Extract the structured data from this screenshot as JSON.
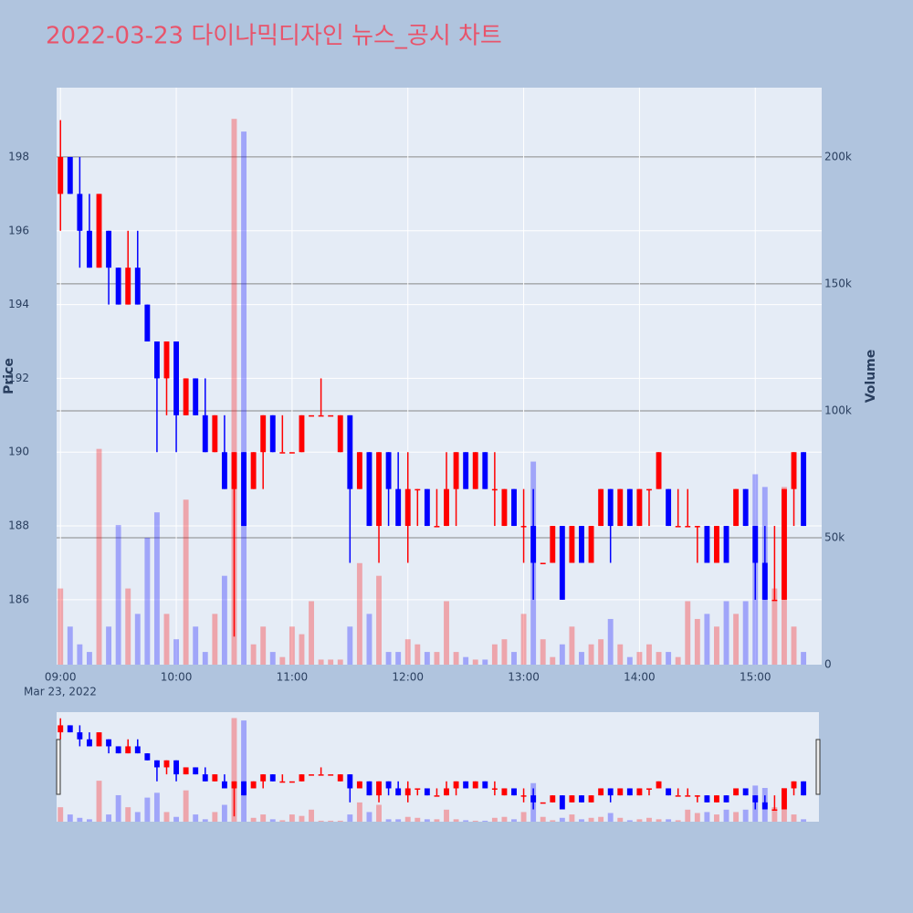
{
  "chart_data": {
    "type": "candlestick",
    "title": "2022-03-23 다이나믹디자인 뉴스_공시 차트",
    "y_label": "Price",
    "y2_label": "Volume",
    "x_sublabel": "Mar 23, 2022",
    "increasing_color": "#ff0000",
    "decreasing_color": "#0000ff",
    "xlim": [
      "08:58",
      "15:33"
    ],
    "xticks": [
      "09:00",
      "10:00",
      "11:00",
      "12:00",
      "13:00",
      "14:00",
      "15:00"
    ],
    "ylim": [
      184.24,
      199.88
    ],
    "yticks": [
      186,
      188,
      190,
      192,
      194,
      196,
      198
    ],
    "y2lim": [
      0,
      227300
    ],
    "y2ticks": [
      0,
      {
        "value": 50000,
        "label": "50k"
      },
      {
        "value": 100000,
        "label": "100k"
      },
      {
        "value": 150000,
        "label": "150k"
      },
      {
        "value": 200000,
        "label": "200k"
      }
    ],
    "x": [
      "09:00",
      "09:05",
      "09:10",
      "09:15",
      "09:20",
      "09:25",
      "09:30",
      "09:35",
      "09:40",
      "09:45",
      "09:50",
      "09:55",
      "10:00",
      "10:05",
      "10:10",
      "10:15",
      "10:20",
      "10:25",
      "10:30",
      "10:35",
      "10:40",
      "10:45",
      "10:50",
      "10:55",
      "11:00",
      "11:05",
      "11:10",
      "11:15",
      "11:20",
      "11:25",
      "11:30",
      "11:35",
      "11:40",
      "11:45",
      "11:50",
      "11:55",
      "12:00",
      "12:05",
      "12:10",
      "12:15",
      "12:20",
      "12:25",
      "12:30",
      "12:35",
      "12:40",
      "12:45",
      "12:50",
      "12:55",
      "13:00",
      "13:05",
      "13:10",
      "13:15",
      "13:20",
      "13:25",
      "13:30",
      "13:35",
      "13:40",
      "13:45",
      "13:50",
      "13:55",
      "14:00",
      "14:05",
      "14:10",
      "14:15",
      "14:20",
      "14:25",
      "14:30",
      "14:35",
      "14:40",
      "14:45",
      "14:50",
      "14:55",
      "15:00",
      "15:05",
      "15:10",
      "15:15",
      "15:20",
      "15:25"
    ],
    "open": [
      197,
      198,
      197,
      196,
      195,
      196,
      195,
      194,
      195,
      194,
      193,
      192,
      193,
      191,
      192,
      191,
      190,
      190,
      189,
      190,
      189,
      190,
      191,
      190,
      190,
      190,
      191,
      191,
      191,
      190,
      191,
      189,
      190,
      188,
      190,
      189,
      188,
      189,
      189,
      188,
      188,
      189,
      190,
      189,
      190,
      189,
      188,
      189,
      188,
      188,
      187,
      187,
      188,
      187,
      188,
      187,
      188,
      189,
      188,
      189,
      188,
      189,
      189,
      189,
      188,
      188,
      188,
      188,
      187,
      188,
      188,
      189,
      188,
      187,
      186,
      186,
      189,
      190
    ],
    "high": [
      199,
      198,
      198,
      197,
      197,
      196,
      195,
      196,
      196,
      194,
      193,
      193,
      193,
      192,
      192,
      192,
      191,
      191,
      190,
      190,
      190,
      191,
      191,
      191,
      190,
      191,
      191,
      192,
      191,
      191,
      191,
      190,
      190,
      190,
      190,
      190,
      190,
      189,
      189,
      189,
      190,
      190,
      190,
      190,
      190,
      190,
      189,
      189,
      189,
      189,
      187,
      188,
      188,
      188,
      188,
      188,
      189,
      189,
      189,
      189,
      189,
      189,
      190,
      189,
      189,
      189,
      188,
      188,
      188,
      188,
      189,
      189,
      188,
      188,
      188,
      189,
      190,
      190
    ],
    "low": [
      196,
      197,
      195,
      195,
      195,
      194,
      194,
      194,
      194,
      193,
      190,
      191,
      190,
      191,
      191,
      190,
      190,
      189,
      185,
      188,
      189,
      189,
      190,
      190,
      190,
      190,
      191,
      191,
      191,
      190,
      187,
      189,
      188,
      187,
      188,
      188,
      187,
      188,
      188,
      188,
      188,
      188,
      189,
      189,
      189,
      188,
      188,
      188,
      187,
      186,
      187,
      187,
      186,
      187,
      187,
      187,
      188,
      187,
      188,
      188,
      188,
      188,
      189,
      188,
      188,
      188,
      187,
      187,
      187,
      187,
      188,
      188,
      186,
      186,
      186,
      186,
      188,
      188
    ],
    "close": [
      198,
      197,
      196,
      195,
      197,
      195,
      194,
      195,
      194,
      193,
      192,
      193,
      191,
      192,
      191,
      190,
      191,
      189,
      190,
      188,
      190,
      191,
      190,
      190,
      190,
      191,
      191,
      191,
      191,
      191,
      189,
      190,
      188,
      190,
      189,
      188,
      189,
      189,
      188,
      188,
      189,
      190,
      189,
      190,
      189,
      189,
      189,
      188,
      188,
      187,
      187,
      188,
      186,
      188,
      187,
      188,
      189,
      188,
      189,
      188,
      189,
      189,
      190,
      188,
      188,
      188,
      188,
      187,
      188,
      187,
      189,
      188,
      187,
      186,
      186,
      189,
      190,
      188
    ],
    "volume": [
      30000,
      15000,
      8000,
      5000,
      85000,
      15000,
      55000,
      30000,
      20000,
      50000,
      60000,
      20000,
      10000,
      65000,
      15000,
      5000,
      20000,
      35000,
      215000,
      210000,
      8000,
      15000,
      5000,
      3000,
      15000,
      12000,
      25000,
      2000,
      2000,
      2000,
      15000,
      40000,
      20000,
      35000,
      5000,
      5000,
      10000,
      8000,
      5000,
      5000,
      25000,
      5000,
      3000,
      2000,
      2000,
      8000,
      10000,
      5000,
      20000,
      80000,
      10000,
      3000,
      8000,
      15000,
      5000,
      8000,
      10000,
      18000,
      8000,
      3000,
      5000,
      8000,
      5000,
      5000,
      3000,
      25000,
      18000,
      20000,
      15000,
      25000,
      20000,
      25000,
      75000,
      70000,
      30000,
      70000,
      15000,
      5000
    ]
  }
}
